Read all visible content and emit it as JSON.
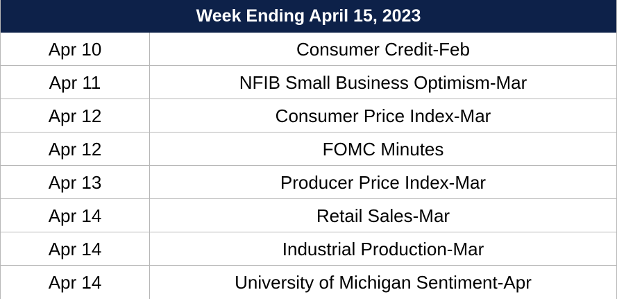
{
  "header": {
    "title": "Week Ending April 15, 2023"
  },
  "rows": [
    {
      "date": "Apr 10",
      "event": "Consumer Credit-Feb"
    },
    {
      "date": "Apr 11",
      "event": "NFIB Small Business Optimism-Mar"
    },
    {
      "date": "Apr 12",
      "event": "Consumer Price Index-Mar"
    },
    {
      "date": "Apr 12",
      "event": "FOMC Minutes"
    },
    {
      "date": "Apr 13",
      "event": "Producer Price Index-Mar"
    },
    {
      "date": "Apr 14",
      "event": "Retail Sales-Mar"
    },
    {
      "date": "Apr 14",
      "event": "Industrial Production-Mar"
    },
    {
      "date": "Apr 14",
      "event": "University of Michigan Sentiment-Apr"
    }
  ],
  "colors": {
    "header_background": "#0d2149",
    "header_text": "#ffffff",
    "grid_line": "#b7b7b7"
  }
}
